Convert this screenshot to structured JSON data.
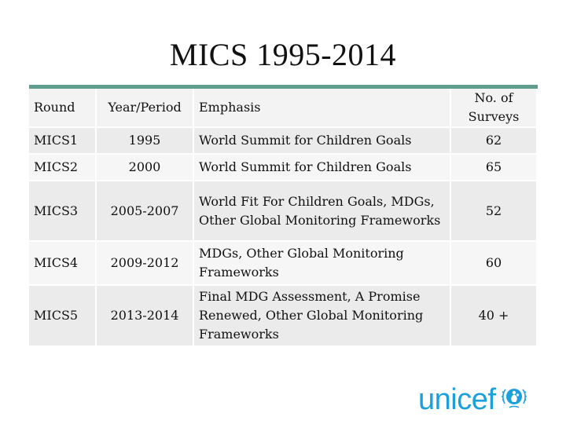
{
  "title": "MICS 1995-2014",
  "table": {
    "headers": {
      "round": "Round",
      "year": "Year/Period",
      "emphasis": "Emphasis",
      "surveys": "No. of Surveys"
    },
    "rows": [
      {
        "round": "MICS1",
        "year": "1995",
        "emphasis": "World Summit for Children Goals",
        "surveys": "62"
      },
      {
        "round": "MICS2",
        "year": "2000",
        "emphasis": "World Summit for Children Goals",
        "surveys": "65"
      },
      {
        "round": "MICS3",
        "year": "2005-2007",
        "emphasis": "World Fit For Children Goals, MDGs, Other Global Monitoring Frameworks",
        "surveys": "52"
      },
      {
        "round": "MICS4",
        "year": "2009-2012",
        "emphasis": "MDGs, Other Global Monitoring Frameworks",
        "surveys": "60"
      },
      {
        "round": "MICS5",
        "year": "2013-2014",
        "emphasis": "Final MDG Assessment, A Promise Renewed, Other Global Monitoring Frameworks",
        "surveys": "40 +"
      }
    ]
  },
  "logo": {
    "text": "unicef",
    "emblem_icon": "unicef-emblem-icon",
    "color": "#1ca0dc"
  },
  "colors": {
    "accent": "#5f9e8f",
    "row_dark": "#ebebeb",
    "row_light": "#f6f6f6"
  }
}
